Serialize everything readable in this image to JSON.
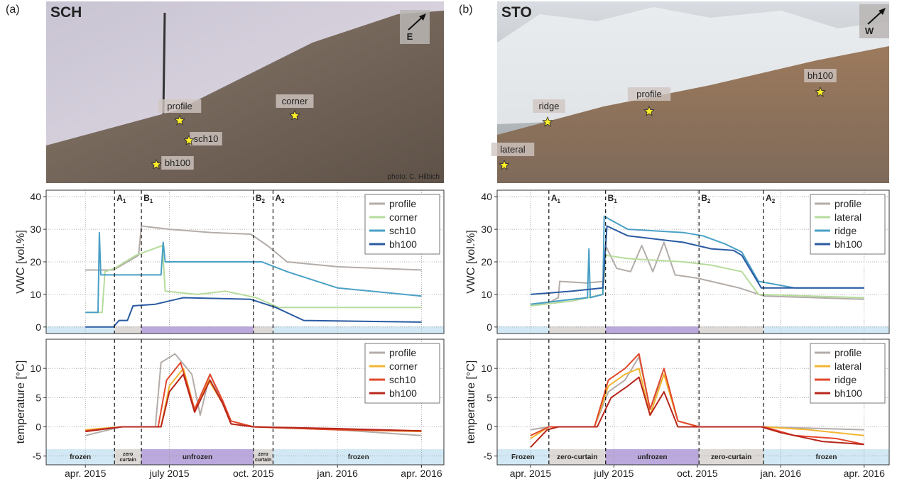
{
  "panels": [
    {
      "label": "(a)",
      "photo": {
        "title": "SCH",
        "direction": "E",
        "credit": "photo: C. Hilbich",
        "markers": [
          "profile",
          "corner",
          "sch10",
          "bh100"
        ]
      }
    },
    {
      "label": "(b)",
      "photo": {
        "title": "STO",
        "direction": "W",
        "markers": [
          "ridge",
          "profile",
          "bh100",
          "lateral"
        ]
      }
    }
  ],
  "chart_data": [
    {
      "type": "line",
      "ylabel": "VWC [vol.%]",
      "xlim": [
        -1.4,
        12.8
      ],
      "ylim": [
        -2,
        42
      ],
      "yticks": [
        0,
        10,
        20,
        30,
        40
      ],
      "grid": true,
      "legend": "top right",
      "events": [
        {
          "label": "A",
          "sub": "1",
          "x": 1.04
        },
        {
          "label": "B",
          "sub": "1",
          "x": 2.0
        },
        {
          "label": "B",
          "sub": "2",
          "x": 6.0
        },
        {
          "label": "A",
          "sub": "2",
          "x": 6.7
        }
      ],
      "series": [
        {
          "name": "profile",
          "color": "#b3aca8",
          "x": [
            0,
            1.0,
            1.3,
            1.9,
            2.0,
            3,
            4.5,
            5.9,
            6.5,
            7.2,
            9,
            12
          ],
          "values": [
            17.5,
            17.5,
            19,
            22,
            31,
            30,
            29,
            28.5,
            25,
            20,
            18.5,
            17.5
          ]
        },
        {
          "name": "corner",
          "color": "#b6dc9c",
          "x": [
            0,
            0.6,
            0.7,
            1.04,
            1.8,
            2.75,
            2.85,
            4,
            5,
            6.1,
            6.9,
            12
          ],
          "values": [
            4.5,
            4.5,
            17,
            18,
            22,
            25,
            11,
            10,
            11,
            9,
            6,
            6
          ]
        },
        {
          "name": "sch10",
          "color": "#4aa0c6",
          "x": [
            0,
            0.45,
            0.5,
            0.55,
            2.7,
            2.78,
            2.85,
            6.3,
            7.2,
            9,
            12
          ],
          "values": [
            4.5,
            4.5,
            29,
            16,
            16,
            26,
            20,
            20,
            17,
            12,
            9.5
          ]
        },
        {
          "name": "bh100",
          "color": "#2a5aa2",
          "x": [
            0,
            1.0,
            1.2,
            1.5,
            1.7,
            2.5,
            3.5,
            5.9,
            6.8,
            7.8,
            12
          ],
          "values": [
            0,
            0,
            2,
            2,
            6.5,
            7,
            9,
            8.5,
            6,
            2,
            1.5
          ]
        }
      ]
    },
    {
      "type": "line",
      "ylabel": "temperature [°C]",
      "xlim": [
        -1.4,
        12.8
      ],
      "ylim": [
        -6.5,
        15
      ],
      "yticks": [
        -5,
        0,
        5,
        10
      ],
      "grid": true,
      "legend": "top right",
      "xticks": [
        {
          "value": 0,
          "label": "apr. 2015"
        },
        {
          "value": 3,
          "label": "july 2015"
        },
        {
          "value": 6,
          "label": "oct. 2015"
        },
        {
          "value": 9,
          "label": "jan. 2016"
        },
        {
          "value": 12,
          "label": "apr. 2016"
        }
      ],
      "phases": [
        {
          "label": "frozen",
          "start": -1.4,
          "end": 1.04,
          "color": "#cde5f3"
        },
        {
          "label": "zero curtain",
          "start": 1.04,
          "end": 2.0,
          "color": "#d8d5d2"
        },
        {
          "label": "unfrozen",
          "start": 2.0,
          "end": 6.0,
          "color": "#b49ed8"
        },
        {
          "label": "zero curtain",
          "start": 6.0,
          "end": 6.7,
          "color": "#d8d5d2"
        },
        {
          "label": "frozen",
          "start": 6.7,
          "end": 12.8,
          "color": "#cde5f3"
        }
      ],
      "series": [
        {
          "name": "profile",
          "color": "#b3aca8",
          "x": [
            0,
            1.0,
            1.3,
            2.5,
            2.7,
            3.2,
            3.8,
            4.1,
            4.45,
            4.9,
            5.2,
            6,
            9,
            12
          ],
          "values": [
            -1.5,
            -0.3,
            0,
            0,
            11,
            12.5,
            9,
            2,
            9,
            4,
            1,
            0,
            -0.5,
            -1.5
          ]
        },
        {
          "name": "corner",
          "color": "#f2b531",
          "x": [
            0,
            1.3,
            2.7,
            3.0,
            3.5,
            3.9,
            4.4,
            4.9,
            5.2,
            6,
            9,
            12
          ],
          "values": [
            -0.5,
            0,
            0,
            7,
            10,
            3,
            8,
            4,
            0.5,
            0,
            -0.5,
            -0.8
          ]
        },
        {
          "name": "sch10",
          "color": "#e2472b",
          "x": [
            0,
            1.3,
            2.6,
            2.9,
            3.4,
            3.9,
            4.45,
            4.9,
            5.2,
            6,
            9,
            12
          ],
          "values": [
            -0.7,
            0,
            0,
            8,
            11,
            3,
            9,
            4.5,
            1,
            0,
            -0.5,
            -0.7
          ]
        },
        {
          "name": "bh100",
          "color": "#b8261b",
          "x": [
            0,
            1.3,
            2.7,
            3.0,
            3.5,
            3.9,
            4.45,
            4.9,
            5.2,
            6,
            9,
            12
          ],
          "values": [
            -0.8,
            0,
            0,
            6,
            9,
            2.5,
            8,
            4,
            0.5,
            0,
            -0.3,
            -0.7
          ]
        }
      ]
    },
    {
      "type": "line",
      "ylabel": "VWC [vol.%]",
      "xlim": [
        -1.2,
        12.9
      ],
      "ylim": [
        -2,
        42
      ],
      "yticks": [
        0,
        10,
        20,
        30,
        40
      ],
      "grid": true,
      "legend": "top right",
      "events": [
        {
          "label": "A",
          "sub": "1",
          "x": 0.66
        },
        {
          "label": "B",
          "sub": "1",
          "x": 2.7
        },
        {
          "label": "B",
          "sub": "2",
          "x": 6.06
        },
        {
          "label": "A",
          "sub": "2",
          "x": 8.38
        }
      ],
      "series": [
        {
          "name": "profile",
          "color": "#b3aca8",
          "x": [
            0,
            0.66,
            1.0,
            1.05,
            2.0,
            2.65,
            2.7,
            3.1,
            3.6,
            4.0,
            4.4,
            4.8,
            5.2,
            6,
            7.5,
            8.4,
            12
          ],
          "values": [
            7,
            7.5,
            9,
            14,
            13.5,
            14,
            25,
            18,
            17,
            25,
            17,
            26,
            16,
            15,
            12,
            9.5,
            8.5
          ]
        },
        {
          "name": "lateral",
          "color": "#b6dc9c",
          "x": [
            0,
            1.5,
            2.6,
            2.7,
            3.5,
            5.5,
            6.5,
            7.6,
            8.2,
            12
          ],
          "values": [
            6.5,
            8,
            10,
            22,
            21,
            20,
            19,
            17,
            10,
            9
          ]
        },
        {
          "name": "ridge",
          "color": "#4aa0c6",
          "x": [
            0,
            1.5,
            2.05,
            2.1,
            2.15,
            2.6,
            2.65,
            2.85,
            3.5,
            5.5,
            6.2,
            7,
            7.6,
            8.2,
            9.5,
            12
          ],
          "values": [
            7,
            8.5,
            9,
            24,
            9,
            10,
            34,
            33,
            30,
            29,
            28,
            25.5,
            23,
            14,
            12,
            12
          ]
        },
        {
          "name": "bh100",
          "color": "#2a5aa2",
          "x": [
            0,
            1.5,
            2.6,
            2.75,
            3.5,
            5.5,
            6.5,
            7.3,
            7.6,
            8.3,
            12
          ],
          "values": [
            10,
            11,
            12,
            31,
            28,
            26,
            24,
            23.5,
            22,
            12,
            12
          ]
        }
      ]
    },
    {
      "type": "line",
      "ylabel": "temperature [°C]",
      "xlim": [
        -1.2,
        12.9
      ],
      "ylim": [
        -6.5,
        15
      ],
      "yticks": [
        -5,
        0,
        5,
        10
      ],
      "grid": true,
      "legend": "top right",
      "xticks": [
        {
          "value": 0,
          "label": "apr. 2015"
        },
        {
          "value": 3,
          "label": "july 2015"
        },
        {
          "value": 6,
          "label": "oct. 2015"
        },
        {
          "value": 9,
          "label": "jan. 2016"
        },
        {
          "value": 12,
          "label": "apr. 2016"
        }
      ],
      "phases": [
        {
          "label": "Frozen",
          "start": -1.2,
          "end": 0.66,
          "color": "#cde5f3"
        },
        {
          "label": "zero-curtain",
          "start": 0.66,
          "end": 2.7,
          "color": "#d8d5d2"
        },
        {
          "label": "unfrozen",
          "start": 2.7,
          "end": 6.06,
          "color": "#b49ed8"
        },
        {
          "label": "zero-curtain",
          "start": 6.06,
          "end": 8.38,
          "color": "#d8d5d2"
        },
        {
          "label": "frozen",
          "start": 8.38,
          "end": 12.9,
          "color": "#cde5f3"
        }
      ],
      "series": [
        {
          "name": "profile",
          "color": "#b3aca8",
          "x": [
            0,
            0.66,
            2.3,
            2.8,
            3.4,
            3.9,
            4.3,
            4.8,
            5.3,
            6.06,
            8.4,
            12
          ],
          "values": [
            -0.5,
            0,
            0,
            6,
            8,
            12,
            3,
            9,
            1,
            0,
            0,
            -0.5
          ]
        },
        {
          "name": "lateral",
          "color": "#f2b531",
          "x": [
            0,
            0.66,
            2.3,
            2.8,
            3.4,
            3.9,
            4.3,
            4.8,
            5.3,
            6.06,
            8.4,
            10,
            12
          ],
          "values": [
            -2,
            0,
            0,
            7,
            9,
            10,
            2,
            9,
            1,
            0,
            0,
            -0.5,
            -1.5
          ]
        },
        {
          "name": "ridge",
          "color": "#e2472b",
          "x": [
            0,
            0.66,
            2.3,
            2.8,
            3.4,
            3.9,
            4.3,
            4.8,
            5.3,
            6.06,
            8.4,
            9.5,
            11,
            12
          ],
          "values": [
            -1.5,
            0,
            0,
            8,
            10,
            12.5,
            3,
            10,
            1,
            0,
            0,
            -1.5,
            -2,
            -3
          ]
        },
        {
          "name": "bh100",
          "color": "#b8261b",
          "x": [
            0,
            0.6,
            1.0,
            2.4,
            2.9,
            3.5,
            3.9,
            4.3,
            4.8,
            5.3,
            8.3,
            9,
            10.5,
            12
          ],
          "values": [
            -3.5,
            -0.5,
            0,
            0,
            5,
            7,
            8.5,
            2,
            6,
            0,
            0,
            -1,
            -2.5,
            -3
          ]
        }
      ]
    }
  ]
}
